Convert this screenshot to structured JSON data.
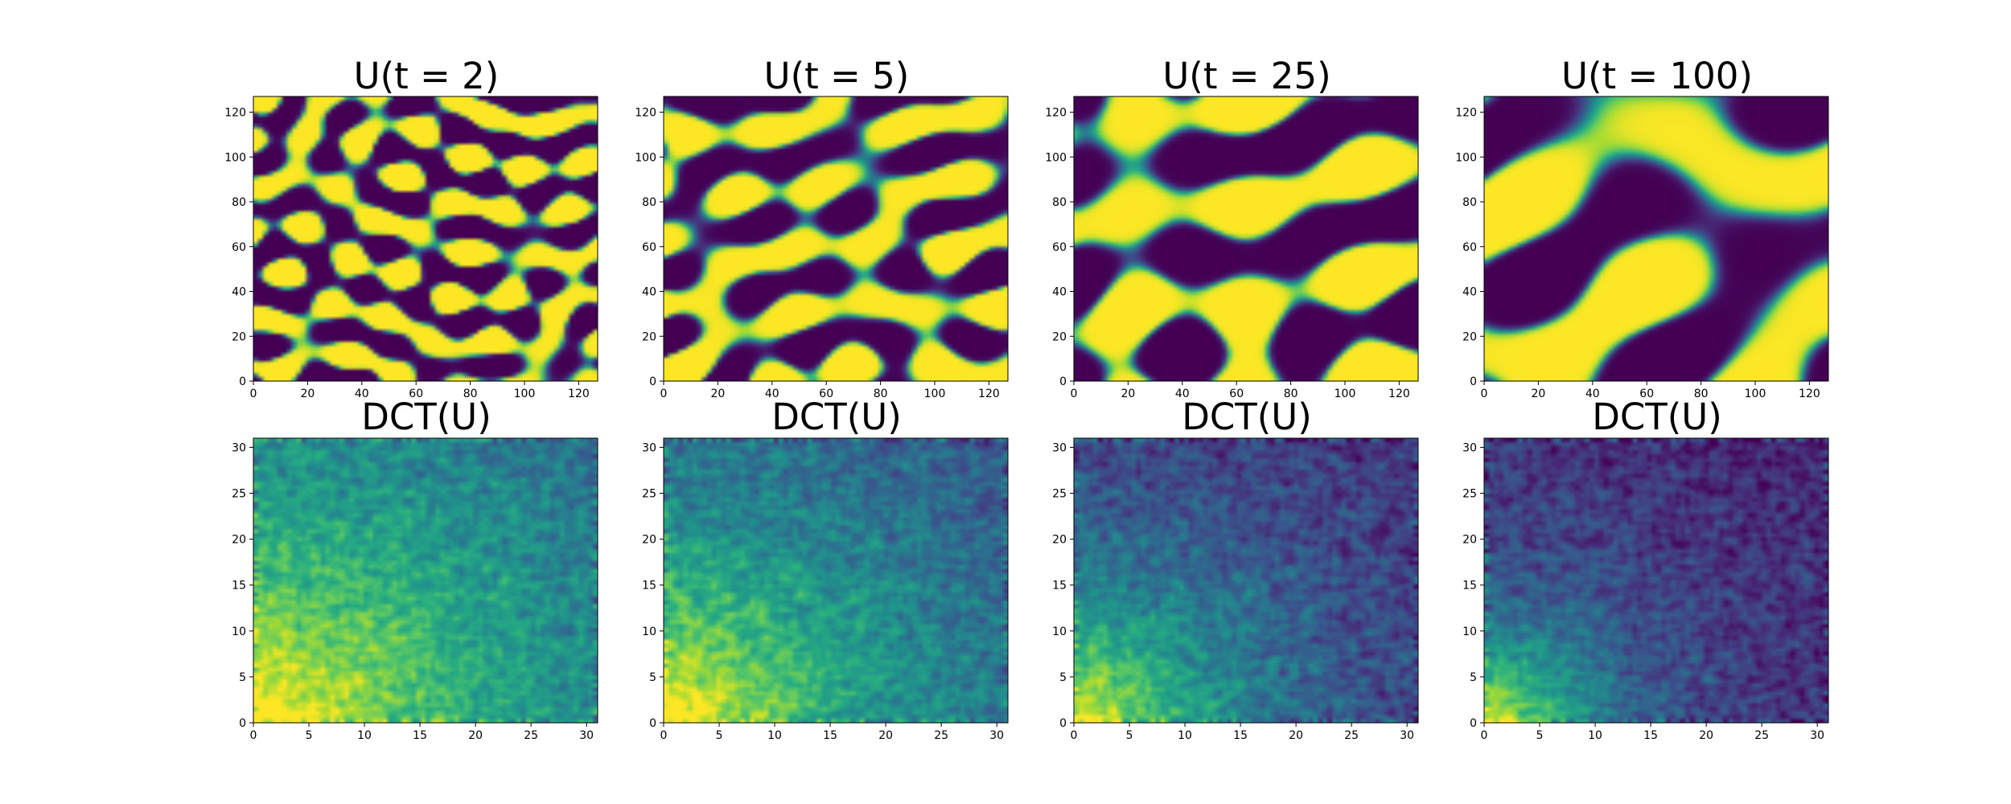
{
  "chart_data": [
    {
      "type": "heatmap",
      "title": "U(t = 2)",
      "xlim": [
        0,
        127
      ],
      "ylim": [
        0,
        127
      ],
      "xticks": [
        "0",
        "20",
        "40",
        "60",
        "80",
        "100",
        "120"
      ],
      "yticks": [
        "0",
        "20",
        "40",
        "60",
        "80",
        "100",
        "120"
      ],
      "colormap": "viridis",
      "field": "U",
      "t": 2
    },
    {
      "type": "heatmap",
      "title": "U(t = 5)",
      "xlim": [
        0,
        127
      ],
      "ylim": [
        0,
        127
      ],
      "xticks": [
        "0",
        "20",
        "40",
        "60",
        "80",
        "100",
        "120"
      ],
      "yticks": [
        "0",
        "20",
        "40",
        "60",
        "80",
        "100",
        "120"
      ],
      "colormap": "viridis",
      "field": "U",
      "t": 5
    },
    {
      "type": "heatmap",
      "title": "U(t = 25)",
      "xlim": [
        0,
        127
      ],
      "ylim": [
        0,
        127
      ],
      "xticks": [
        "0",
        "20",
        "40",
        "60",
        "80",
        "100",
        "120"
      ],
      "yticks": [
        "0",
        "20",
        "40",
        "60",
        "80",
        "100",
        "120"
      ],
      "colormap": "viridis",
      "field": "U",
      "t": 25
    },
    {
      "type": "heatmap",
      "title": "U(t = 100)",
      "xlim": [
        0,
        127
      ],
      "ylim": [
        0,
        127
      ],
      "xticks": [
        "0",
        "20",
        "40",
        "60",
        "80",
        "100",
        "120"
      ],
      "yticks": [
        "0",
        "20",
        "40",
        "60",
        "80",
        "100",
        "120"
      ],
      "colormap": "viridis",
      "field": "U",
      "t": 100
    },
    {
      "type": "heatmap",
      "title": "DCT(U)",
      "xlim": [
        0,
        31
      ],
      "ylim": [
        0,
        31
      ],
      "xticks": [
        "0",
        "5",
        "10",
        "15",
        "20",
        "25",
        "30"
      ],
      "yticks": [
        "0",
        "5",
        "10",
        "15",
        "20",
        "25",
        "30"
      ],
      "colormap": "viridis",
      "field": "DCT",
      "t": 2
    },
    {
      "type": "heatmap",
      "title": "DCT(U)",
      "xlim": [
        0,
        31
      ],
      "ylim": [
        0,
        31
      ],
      "xticks": [
        "0",
        "5",
        "10",
        "15",
        "20",
        "25",
        "30"
      ],
      "yticks": [
        "0",
        "5",
        "10",
        "15",
        "20",
        "25",
        "30"
      ],
      "colormap": "viridis",
      "field": "DCT",
      "t": 5
    },
    {
      "type": "heatmap",
      "title": "DCT(U)",
      "xlim": [
        0,
        31
      ],
      "ylim": [
        0,
        31
      ],
      "xticks": [
        "0",
        "5",
        "10",
        "15",
        "20",
        "25",
        "30"
      ],
      "yticks": [
        "0",
        "5",
        "10",
        "15",
        "20",
        "25",
        "30"
      ],
      "colormap": "viridis",
      "field": "DCT",
      "t": 25
    },
    {
      "type": "heatmap",
      "title": "DCT(U)",
      "xlim": [
        0,
        31
      ],
      "ylim": [
        0,
        31
      ],
      "xticks": [
        "0",
        "5",
        "10",
        "15",
        "20",
        "25",
        "30"
      ],
      "yticks": [
        "0",
        "5",
        "10",
        "15",
        "20",
        "25",
        "30"
      ],
      "colormap": "viridis",
      "field": "DCT",
      "t": 100
    }
  ],
  "colors": {
    "viridis_low": "#440154",
    "viridis_mid": "#21918c",
    "viridis_high": "#fde725"
  }
}
